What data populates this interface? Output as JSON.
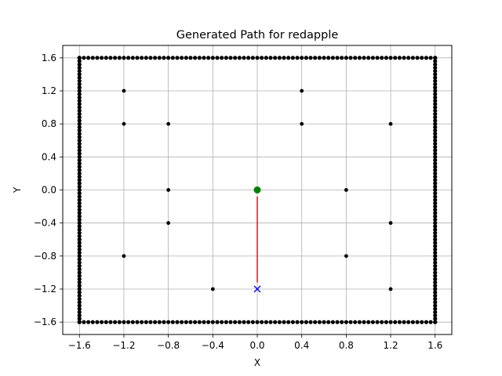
{
  "chart_data": {
    "type": "scatter",
    "title": "Generated Path for redapple",
    "xlabel": "X",
    "ylabel": "Y",
    "xlim": [
      -1.75,
      1.75
    ],
    "ylim": [
      -1.75,
      1.75
    ],
    "grid": true,
    "xticks": [
      -1.6,
      -1.2,
      -0.8,
      -0.4,
      0.0,
      0.4,
      0.8,
      1.2,
      1.6
    ],
    "yticks": [
      -1.6,
      -1.2,
      -0.8,
      -0.4,
      0.0,
      0.4,
      0.8,
      1.2,
      1.6
    ],
    "xtick_labels": [
      "−1.6",
      "−1.2",
      "−0.8",
      "−0.4",
      "0.0",
      "0.4",
      "0.8",
      "1.2",
      "1.6"
    ],
    "ytick_labels": [
      "−1.6",
      "−1.2",
      "−0.8",
      "−0.4",
      "0.0",
      "0.4",
      "0.8",
      "1.2",
      "1.6"
    ],
    "boundary": {
      "x_range": [
        -1.6,
        1.6
      ],
      "y_range": [
        -1.6,
        1.6
      ],
      "step": 0.04,
      "color": "#000000"
    },
    "obstacles": {
      "color": "#000000",
      "points": [
        [
          -1.2,
          1.2
        ],
        [
          0.4,
          1.2
        ],
        [
          -1.2,
          0.8
        ],
        [
          -0.8,
          0.8
        ],
        [
          0.4,
          0.8
        ],
        [
          1.2,
          0.8
        ],
        [
          -0.8,
          0.0
        ],
        [
          0.8,
          0.0
        ],
        [
          -0.8,
          -0.4
        ],
        [
          1.2,
          -0.4
        ],
        [
          -1.2,
          -0.8
        ],
        [
          0.8,
          -0.8
        ],
        [
          -0.4,
          -1.2
        ],
        [
          1.2,
          -1.2
        ]
      ]
    },
    "path": {
      "color": "#d62728",
      "points": [
        [
          0.0,
          -0.08
        ],
        [
          0.0,
          -1.12
        ]
      ]
    },
    "start": {
      "x": 0.0,
      "y": 0.0,
      "color": "#008000",
      "marker": "circle"
    },
    "goal": {
      "x": 0.0,
      "y": -1.2,
      "color": "#0000ff",
      "marker": "x"
    }
  }
}
